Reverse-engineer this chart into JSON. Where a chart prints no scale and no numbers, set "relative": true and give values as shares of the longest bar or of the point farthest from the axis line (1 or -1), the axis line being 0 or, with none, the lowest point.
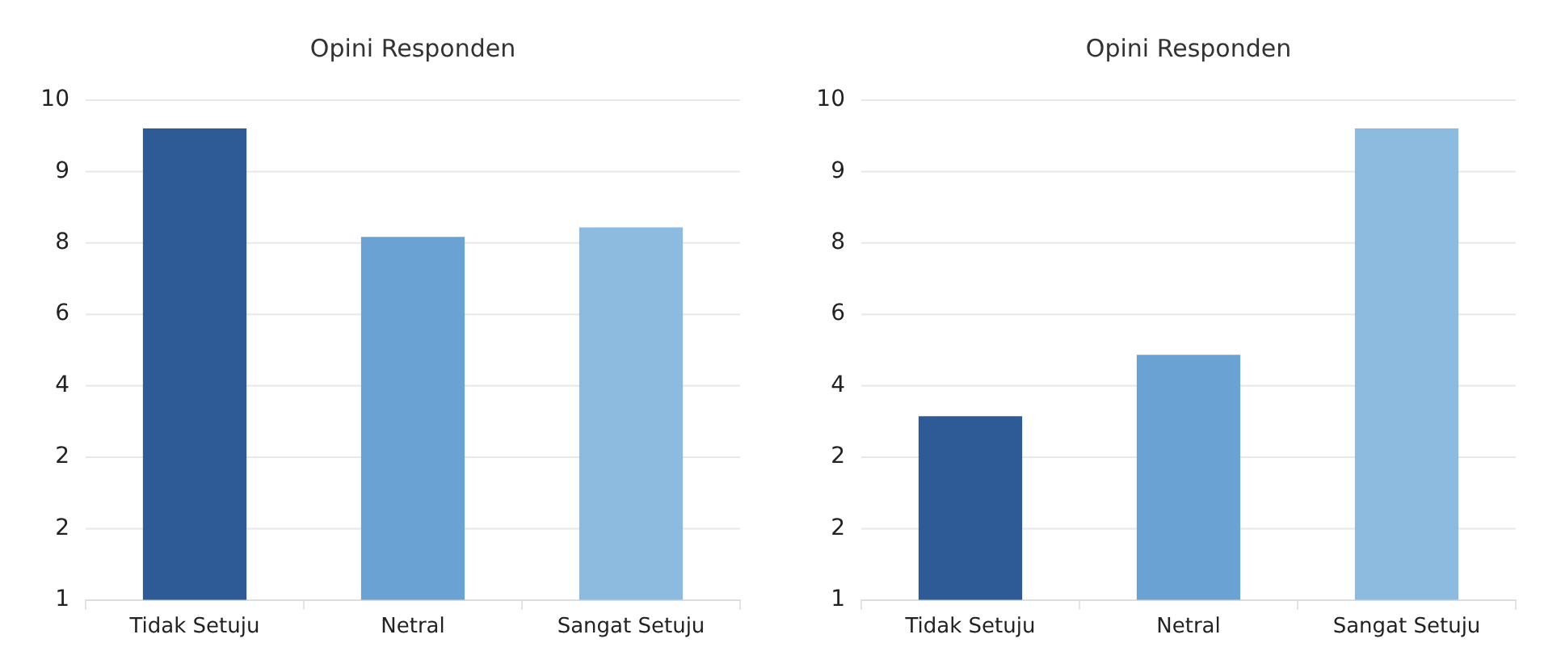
{
  "chart_data": [
    {
      "type": "bar",
      "title": "Opini Responden",
      "relative": true,
      "categories": [
        "Tidak Setuju",
        "Netral",
        "Sangat Setuju"
      ],
      "values": [
        1,
        0.77,
        0.79
      ],
      "colors": [
        "#2e5b95",
        "#6aa3d3",
        "#8dbbe0"
      ],
      "annotations": [
        "1",
        "2",
        "2",
        "4",
        "6",
        "8",
        "9",
        "10"
      ],
      "grid": "y",
      "legend": false
    },
    {
      "type": "bar",
      "title": "Opini Responden",
      "relative": true,
      "categories": [
        "Tidak Setuju",
        "Netral",
        "Sangat Setuju"
      ],
      "values": [
        0.39,
        0.52,
        1
      ],
      "colors": [
        "#2e5b95",
        "#6aa3d3",
        "#8dbbe0"
      ],
      "annotations": [
        "1",
        "2",
        "2",
        "4",
        "6",
        "8",
        "9",
        "10"
      ],
      "grid": "y",
      "legend": false
    }
  ]
}
